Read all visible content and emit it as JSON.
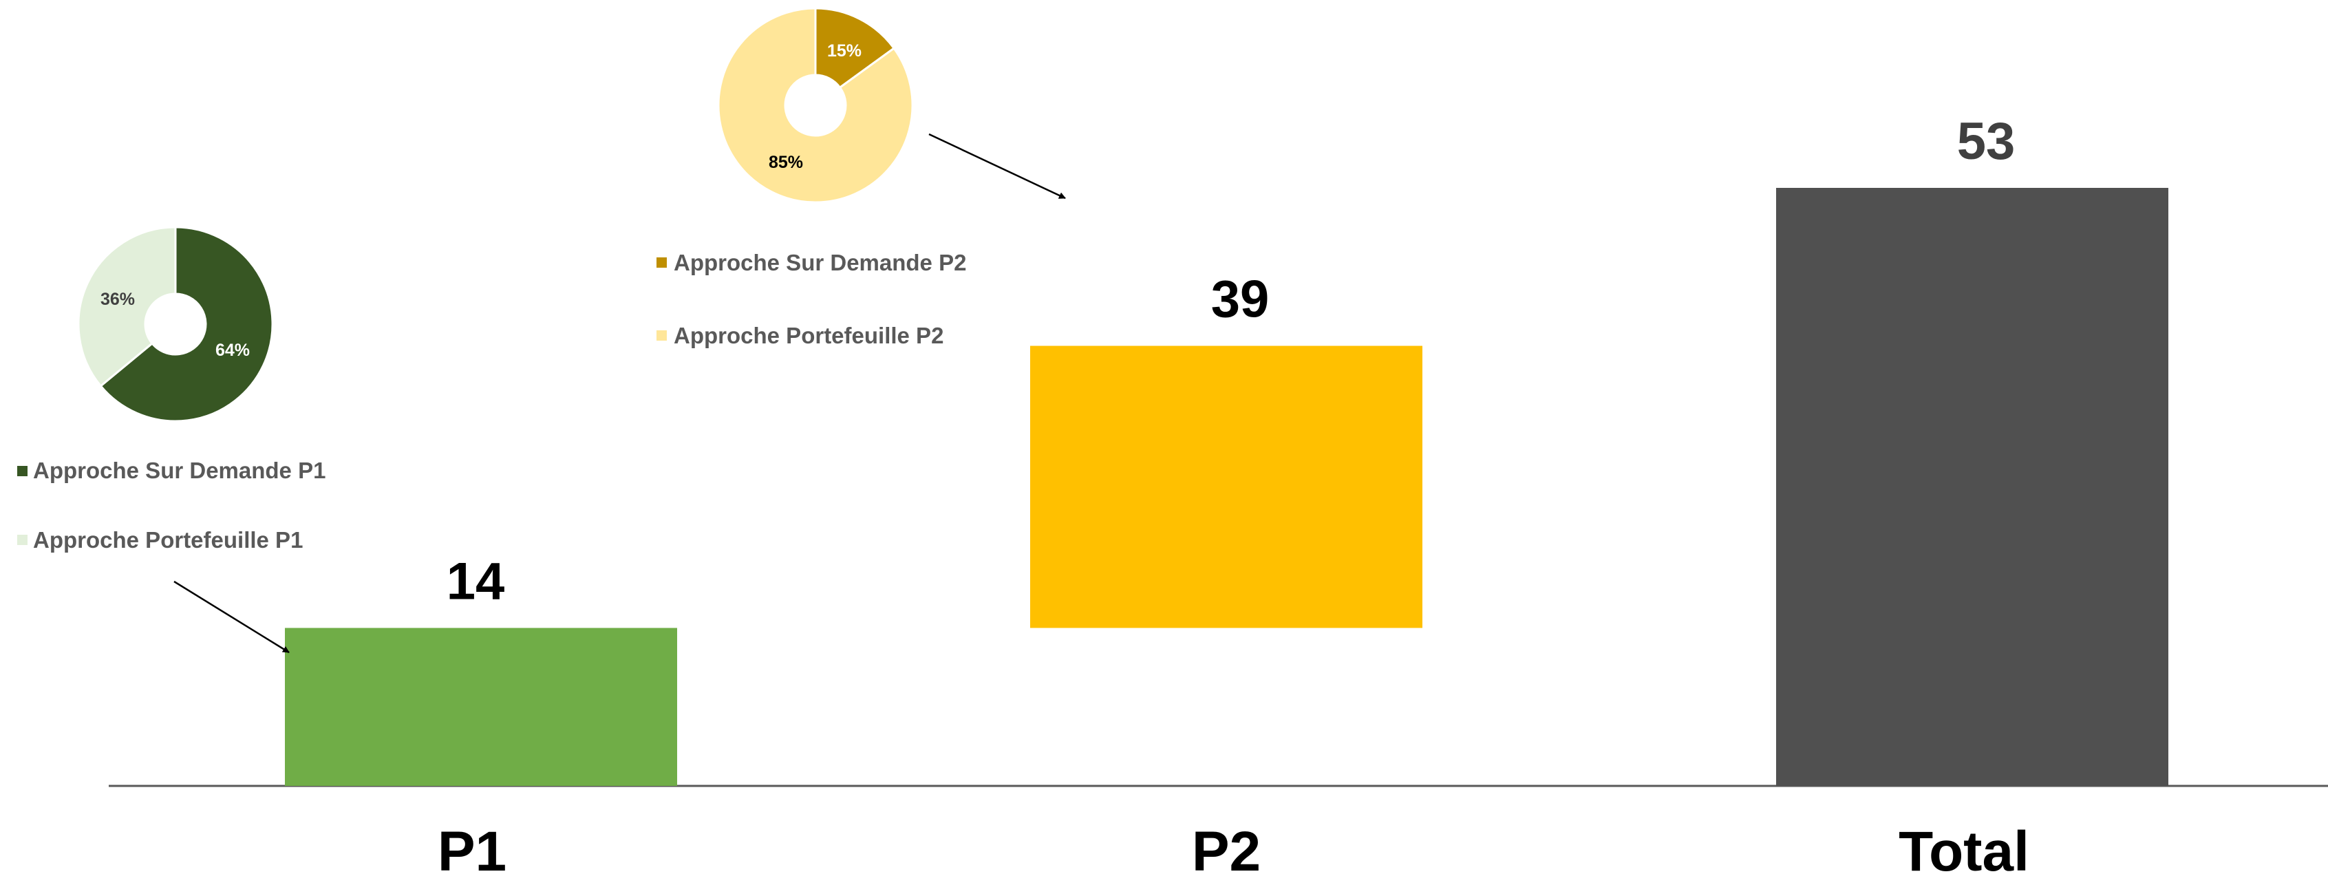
{
  "chart_data": [
    {
      "type": "bar",
      "categories": [
        "P1",
        "P2",
        "Total"
      ],
      "series": [
        {
          "values": [
            14,
            39,
            53
          ],
          "colors": [
            "#70ad47",
            "#ffc000",
            "#505050"
          ]
        }
      ],
      "waterfall": true,
      "data_labels": [
        "14",
        "39",
        "53"
      ],
      "ylim": [
        0,
        53
      ],
      "grid": false
    },
    {
      "type": "pie",
      "donut": true,
      "linked_category": "P1",
      "slices": [
        {
          "label": "Approche Sur Demande P1",
          "value": 64,
          "text": "64%",
          "color": "#375623"
        },
        {
          "label": "Approche Portefeuille P1",
          "value": 36,
          "text": "36%",
          "color": "#e2efda"
        }
      ]
    },
    {
      "type": "pie",
      "donut": true,
      "linked_category": "P2",
      "slices": [
        {
          "label": "Approche Sur Demande P2",
          "value": 15,
          "text": "15%",
          "color": "#bf8f00"
        },
        {
          "label": "Approche Portefeuille P2",
          "value": 85,
          "text": "85%",
          "color": "#ffe699"
        }
      ]
    }
  ]
}
